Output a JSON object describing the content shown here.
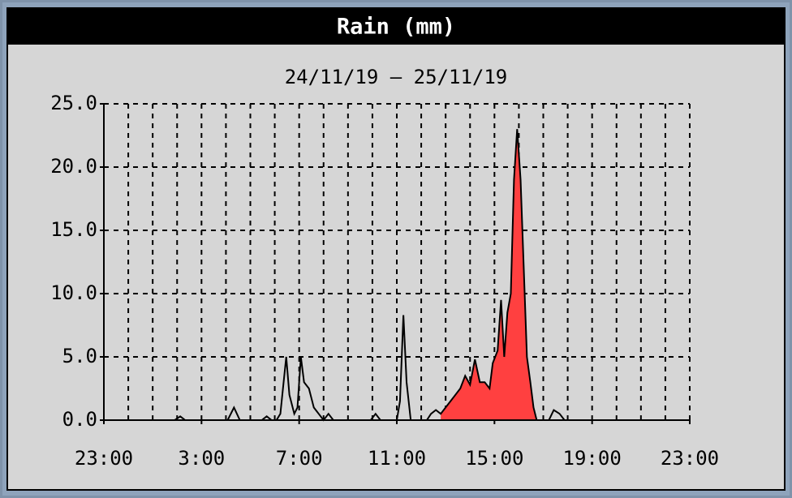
{
  "chart_data": {
    "type": "area",
    "title": "Rain (mm)",
    "subtitle": "24/11/19 – 25/11/19",
    "x": [
      0,
      2.9,
      3.13,
      3.33,
      5.07,
      5.33,
      5.57,
      6.47,
      6.67,
      6.87,
      7.07,
      7.23,
      7.47,
      7.6,
      7.8,
      7.93,
      8.07,
      8.2,
      8.4,
      8.6,
      8.8,
      9,
      9.2,
      9.4,
      10.93,
      11.13,
      11.33,
      12,
      12.13,
      12.27,
      12.4,
      12.57,
      13.23,
      13.4,
      13.6,
      13.8,
      14,
      14.2,
      14.4,
      14.6,
      14.8,
      15,
      15.2,
      15.4,
      15.6,
      15.8,
      15.93,
      16.13,
      16.27,
      16.4,
      16.53,
      16.67,
      16.8,
      16.93,
      17.07,
      17.2,
      17.33,
      17.47,
      17.6,
      17.73,
      18.23,
      18.43,
      18.67,
      18.87,
      19.07
    ],
    "series": [
      {
        "color": "#ff4040",
        "fill": true,
        "values": [
          null,
          null,
          null,
          null,
          null,
          null,
          null,
          null,
          null,
          null,
          null,
          null,
          null,
          null,
          null,
          null,
          null,
          null,
          null,
          null,
          null,
          null,
          null,
          null,
          null,
          null,
          null,
          null,
          null,
          null,
          null,
          null,
          null,
          null,
          null,
          0.5,
          1.0,
          1.5,
          2.0,
          2.5,
          3.5,
          2.8,
          4.8,
          3.0,
          3.0,
          2.5,
          4.5,
          5.5,
          9.5,
          5.0,
          8.5,
          10.0,
          19.0,
          23.0,
          19.0,
          12.0,
          5.0,
          3.0,
          1.0,
          0,
          null,
          null,
          null,
          null,
          null
        ]
      },
      {
        "color": "#000000",
        "fill": false,
        "values": [
          0,
          0,
          0.3,
          0,
          0,
          1.0,
          0,
          0,
          0.3,
          0,
          0,
          0.5,
          5.0,
          2.0,
          0.5,
          1.0,
          5.0,
          3.0,
          2.5,
          1.0,
          0.5,
          0,
          0.5,
          0,
          0,
          0.5,
          0,
          0,
          1.5,
          8.3,
          3.0,
          0,
          0,
          0.5,
          0.8,
          0.5,
          1.0,
          1.5,
          2.0,
          2.5,
          3.5,
          2.8,
          4.8,
          3.0,
          3.0,
          2.5,
          4.5,
          5.5,
          9.5,
          5.0,
          8.5,
          10.0,
          19.0,
          23.0,
          19.0,
          12.0,
          5.0,
          3.0,
          1.0,
          0,
          0,
          0.8,
          0.5,
          0,
          0
        ]
      }
    ],
    "xlim": [
      0,
      24
    ],
    "xticks": [
      {
        "value": 0,
        "label": "23:00"
      },
      {
        "value": 4,
        "label": "3:00"
      },
      {
        "value": 8,
        "label": "7:00"
      },
      {
        "value": 12,
        "label": "11:00"
      },
      {
        "value": 16,
        "label": "15:00"
      },
      {
        "value": 20,
        "label": "19:00"
      },
      {
        "value": 24,
        "label": "23:00"
      }
    ],
    "xgrid": [
      1,
      2,
      3,
      4,
      5,
      6,
      7,
      8,
      9,
      10,
      11,
      12,
      13,
      14,
      15,
      16,
      17,
      18,
      19,
      20,
      21,
      22,
      23,
      24
    ],
    "ylim": [
      0,
      25
    ],
    "yticks": [
      {
        "value": 0,
        "label": "0.0"
      },
      {
        "value": 5,
        "label": "5.0"
      },
      {
        "value": 10,
        "label": "10.0"
      },
      {
        "value": 15,
        "label": "15.0"
      },
      {
        "value": 20,
        "label": "20.0"
      },
      {
        "value": 25,
        "label": "25.0"
      }
    ],
    "grid": true
  }
}
